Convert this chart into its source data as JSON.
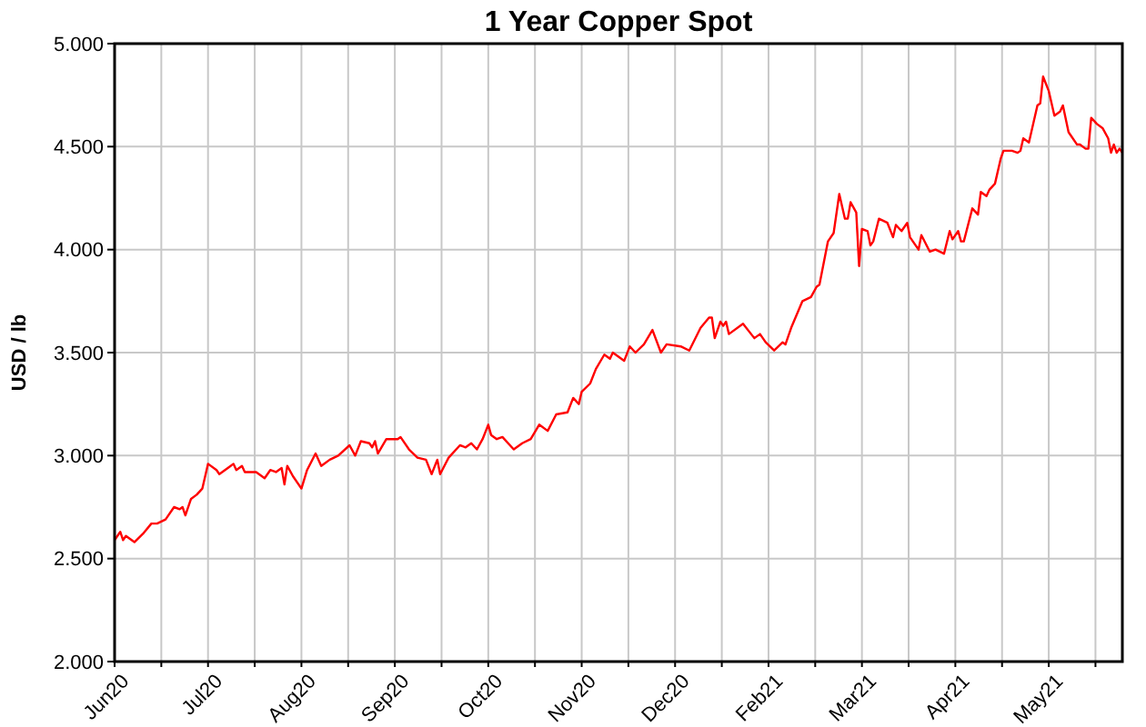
{
  "chart_data": {
    "type": "line",
    "title": "1 Year Copper Spot",
    "ylabel": "USD / lb",
    "xlim": [
      "2020-06-15",
      "2021-06-06"
    ],
    "ylim": [
      2,
      5
    ],
    "xticks": [
      {
        "value": "2020-06-15",
        "label": "Jun20"
      },
      {
        "value": "2020-07-01T12:00",
        "label": null
      },
      {
        "value": "2020-07-18",
        "label": "Jul20"
      },
      {
        "value": "2020-08-03T12:00",
        "label": null
      },
      {
        "value": "2020-08-20",
        "label": "Aug20"
      },
      {
        "value": "2020-09-05T12:00",
        "label": null
      },
      {
        "value": "2020-09-22",
        "label": "Sep20"
      },
      {
        "value": "2020-10-08T12:00",
        "label": null
      },
      {
        "value": "2020-10-25",
        "label": "Oct20"
      },
      {
        "value": "2020-11-10T12:00",
        "label": null
      },
      {
        "value": "2020-11-27",
        "label": "Nov20"
      },
      {
        "value": "2020-12-13T12:00",
        "label": null
      },
      {
        "value": "2020-12-30",
        "label": "Dec20"
      },
      {
        "value": "2021-01-15T12:00",
        "label": null
      },
      {
        "value": "2021-02-01",
        "label": "Feb21"
      },
      {
        "value": "2021-02-17T12:00",
        "label": null
      },
      {
        "value": "2021-03-06",
        "label": "Mar21"
      },
      {
        "value": "2021-03-22T12:00",
        "label": null
      },
      {
        "value": "2021-04-08",
        "label": "Apr21"
      },
      {
        "value": "2021-04-24T12:00",
        "label": null
      },
      {
        "value": "2021-05-11",
        "label": "May21"
      },
      {
        "value": "2021-05-27T12:00",
        "label": null
      }
    ],
    "yticks": [
      {
        "value": 2,
        "label": "2.000"
      },
      {
        "value": 2.5,
        "label": "2.500"
      },
      {
        "value": 3,
        "label": "3.000"
      },
      {
        "value": 3.5,
        "label": "3.500"
      },
      {
        "value": 4,
        "label": "4.000"
      },
      {
        "value": 4.5,
        "label": "4.500"
      },
      {
        "value": 5,
        "label": "5.000"
      }
    ],
    "grid": true,
    "line_style": "solid",
    "marker": "none",
    "series": [
      {
        "color": "#ff0000",
        "x": [
          "2020-06-15",
          "2020-06-17",
          "2020-06-18",
          "2020-06-19",
          "2020-06-22",
          "2020-06-25",
          "2020-06-28",
          "2020-06-30",
          "2020-07-03",
          "2020-07-06",
          "2020-07-08",
          "2020-07-09",
          "2020-07-10",
          "2020-07-12",
          "2020-07-14",
          "2020-07-16",
          "2020-07-18",
          "2020-07-21",
          "2020-07-22",
          "2020-07-25",
          "2020-07-27",
          "2020-07-28",
          "2020-07-30",
          "2020-07-31",
          "2020-08-04",
          "2020-08-07",
          "2020-08-09",
          "2020-08-11",
          "2020-08-13",
          "2020-08-14",
          "2020-08-15",
          "2020-08-17",
          "2020-08-20",
          "2020-08-22",
          "2020-08-25",
          "2020-08-27",
          "2020-08-30",
          "2020-09-02",
          "2020-09-06",
          "2020-09-08",
          "2020-09-10",
          "2020-09-13",
          "2020-09-14",
          "2020-09-15",
          "2020-09-16",
          "2020-09-19",
          "2020-09-23",
          "2020-09-24",
          "2020-09-27",
          "2020-09-30",
          "2020-10-03",
          "2020-10-05",
          "2020-10-07",
          "2020-10-08",
          "2020-10-11",
          "2020-10-15",
          "2020-10-17",
          "2020-10-19",
          "2020-10-21",
          "2020-10-23",
          "2020-10-25",
          "2020-10-26",
          "2020-10-28",
          "2020-10-30",
          "2020-11-03",
          "2020-11-06",
          "2020-11-09",
          "2020-11-12",
          "2020-11-15",
          "2020-11-18",
          "2020-11-22",
          "2020-11-24",
          "2020-11-26",
          "2020-11-27",
          "2020-11-30",
          "2020-12-02",
          "2020-12-05",
          "2020-12-07",
          "2020-12-08",
          "2020-12-10",
          "2020-12-12",
          "2020-12-14",
          "2020-12-16",
          "2020-12-19",
          "2020-12-22",
          "2020-12-25",
          "2020-12-27",
          "2021-01-01",
          "2021-01-04",
          "2021-01-08",
          "2021-01-11",
          "2021-01-12",
          "2021-01-13",
          "2021-01-15",
          "2021-01-16",
          "2021-01-17",
          "2021-01-18",
          "2021-01-23",
          "2021-01-27",
          "2021-01-29",
          "2021-01-31",
          "2021-02-03",
          "2021-02-06",
          "2021-02-07",
          "2021-02-09",
          "2021-02-13",
          "2021-02-16",
          "2021-02-18",
          "2021-02-19",
          "2021-02-22",
          "2021-02-24",
          "2021-02-26",
          "2021-02-28",
          "2021-03-01",
          "2021-03-02",
          "2021-03-04",
          "2021-03-05",
          "2021-03-06",
          "2021-03-08",
          "2021-03-09",
          "2021-03-10",
          "2021-03-12",
          "2021-03-15",
          "2021-03-17",
          "2021-03-18",
          "2021-03-20",
          "2021-03-22",
          "2021-03-23",
          "2021-03-26",
          "2021-03-27",
          "2021-03-30",
          "2021-04-01",
          "2021-04-04",
          "2021-04-06",
          "2021-04-07",
          "2021-04-09",
          "2021-04-10",
          "2021-04-11",
          "2021-04-14",
          "2021-04-16",
          "2021-04-17",
          "2021-04-19",
          "2021-04-20",
          "2021-04-22",
          "2021-04-24",
          "2021-04-25",
          "2021-04-28",
          "2021-04-30",
          "2021-05-01",
          "2021-05-02",
          "2021-05-04",
          "2021-05-07",
          "2021-05-08",
          "2021-05-09",
          "2021-05-11",
          "2021-05-13",
          "2021-05-15",
          "2021-05-16",
          "2021-05-18",
          "2021-05-19",
          "2021-05-21",
          "2021-05-22",
          "2021-05-24",
          "2021-05-25",
          "2021-05-26",
          "2021-05-28",
          "2021-05-30",
          "2021-06-01",
          "2021-06-02",
          "2021-06-03",
          "2021-06-04",
          "2021-06-05",
          "2021-06-06"
        ],
        "values": [
          2.59,
          2.63,
          2.59,
          2.61,
          2.58,
          2.62,
          2.67,
          2.67,
          2.69,
          2.75,
          2.74,
          2.75,
          2.71,
          2.79,
          2.81,
          2.84,
          2.96,
          2.93,
          2.91,
          2.94,
          2.96,
          2.93,
          2.95,
          2.92,
          2.92,
          2.89,
          2.93,
          2.92,
          2.94,
          2.86,
          2.95,
          2.9,
          2.84,
          2.93,
          3.01,
          2.95,
          2.98,
          3.0,
          3.05,
          3.0,
          3.07,
          3.06,
          3.04,
          3.07,
          3.01,
          3.08,
          3.08,
          3.09,
          3.03,
          2.99,
          2.98,
          2.91,
          2.98,
          2.91,
          2.99,
          3.05,
          3.04,
          3.06,
          3.03,
          3.08,
          3.15,
          3.1,
          3.08,
          3.09,
          3.03,
          3.06,
          3.08,
          3.15,
          3.12,
          3.2,
          3.21,
          3.28,
          3.25,
          3.31,
          3.35,
          3.42,
          3.49,
          3.47,
          3.5,
          3.48,
          3.46,
          3.53,
          3.5,
          3.54,
          3.61,
          3.5,
          3.54,
          3.53,
          3.51,
          3.62,
          3.67,
          3.67,
          3.57,
          3.65,
          3.63,
          3.65,
          3.59,
          3.64,
          3.57,
          3.59,
          3.55,
          3.51,
          3.55,
          3.54,
          3.62,
          3.75,
          3.77,
          3.82,
          3.83,
          4.04,
          4.08,
          4.27,
          4.15,
          4.15,
          4.23,
          4.18,
          3.92,
          4.1,
          4.09,
          4.02,
          4.04,
          4.15,
          4.13,
          4.06,
          4.12,
          4.09,
          4.13,
          4.06,
          4.0,
          4.07,
          3.99,
          4.0,
          3.98,
          4.09,
          4.05,
          4.09,
          4.04,
          4.04,
          4.2,
          4.17,
          4.28,
          4.26,
          4.29,
          4.32,
          4.44,
          4.48,
          4.48,
          4.47,
          4.48,
          4.54,
          4.52,
          4.7,
          4.71,
          4.84,
          4.77,
          4.65,
          4.67,
          4.7,
          4.57,
          4.55,
          4.51,
          4.51,
          4.49,
          4.49,
          4.64,
          4.61,
          4.59,
          4.54,
          4.47,
          4.51,
          4.47,
          4.49,
          4.47
        ]
      }
    ]
  }
}
